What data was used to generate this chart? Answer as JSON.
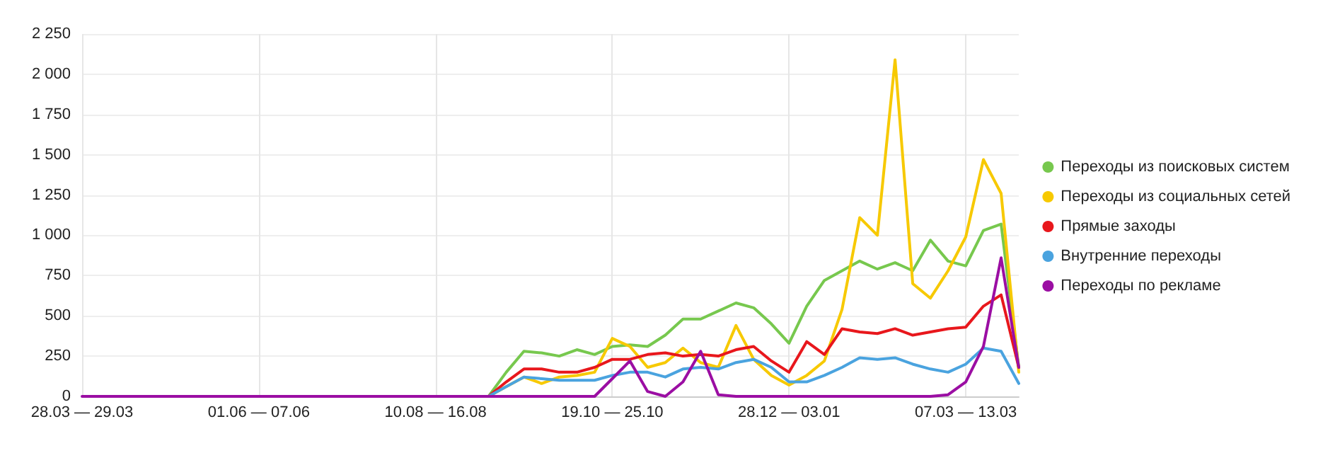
{
  "chart_data": {
    "type": "line",
    "categories": [
      "28.03 — 29.03",
      null,
      null,
      null,
      null,
      null,
      null,
      null,
      null,
      null,
      "01.06 — 07.06",
      null,
      null,
      null,
      null,
      null,
      null,
      null,
      null,
      null,
      "10.08 — 16.08",
      null,
      null,
      null,
      null,
      null,
      null,
      null,
      null,
      null,
      "19.10 — 25.10",
      null,
      null,
      null,
      null,
      null,
      null,
      null,
      null,
      null,
      "28.12 — 03.01",
      null,
      null,
      null,
      null,
      null,
      null,
      null,
      null,
      null,
      "07.03 — 13.03",
      null,
      null,
      null
    ],
    "series": [
      {
        "name": "Переходы из поисковых систем",
        "color": "#77c84e",
        "values": [
          null,
          null,
          null,
          null,
          null,
          null,
          null,
          null,
          null,
          null,
          null,
          null,
          null,
          null,
          null,
          null,
          null,
          null,
          null,
          null,
          null,
          null,
          null,
          0,
          150,
          280,
          270,
          250,
          290,
          260,
          310,
          320,
          310,
          380,
          480,
          480,
          530,
          580,
          550,
          450,
          330,
          560,
          720,
          780,
          840,
          790,
          830,
          780,
          970,
          840,
          810,
          1030,
          1070,
          180
        ]
      },
      {
        "name": "Переходы из социальных сетей",
        "color": "#f7c900",
        "values": [
          null,
          null,
          null,
          null,
          null,
          null,
          null,
          null,
          null,
          null,
          null,
          null,
          null,
          null,
          null,
          null,
          null,
          null,
          null,
          null,
          null,
          null,
          null,
          0,
          60,
          120,
          80,
          120,
          130,
          150,
          360,
          310,
          180,
          210,
          300,
          210,
          180,
          440,
          230,
          130,
          70,
          130,
          220,
          540,
          1110,
          1000,
          2090,
          700,
          610,
          780,
          990,
          1470,
          1260,
          150
        ]
      },
      {
        "name": "Прямые заходы",
        "color": "#e8171c",
        "values": [
          null,
          null,
          null,
          null,
          null,
          null,
          null,
          null,
          null,
          null,
          null,
          null,
          null,
          null,
          null,
          null,
          null,
          null,
          null,
          null,
          null,
          null,
          null,
          0,
          90,
          170,
          170,
          150,
          150,
          180,
          230,
          230,
          260,
          270,
          250,
          260,
          250,
          290,
          310,
          220,
          150,
          340,
          260,
          420,
          400,
          390,
          420,
          380,
          400,
          420,
          430,
          560,
          630,
          180
        ]
      },
      {
        "name": "Внутренние переходы",
        "color": "#4aa3df",
        "values": [
          null,
          null,
          null,
          null,
          null,
          null,
          null,
          null,
          null,
          null,
          null,
          null,
          null,
          null,
          null,
          null,
          null,
          null,
          null,
          null,
          null,
          null,
          null,
          0,
          60,
          120,
          110,
          100,
          100,
          100,
          130,
          150,
          150,
          120,
          170,
          180,
          170,
          210,
          230,
          180,
          90,
          90,
          130,
          180,
          240,
          230,
          240,
          200,
          170,
          150,
          200,
          300,
          280,
          80
        ]
      },
      {
        "name": "Переходы по рекламе",
        "color": "#9b0ea3",
        "values": [
          0,
          0,
          0,
          0,
          0,
          0,
          0,
          0,
          0,
          0,
          0,
          0,
          0,
          0,
          0,
          0,
          0,
          0,
          0,
          0,
          0,
          0,
          0,
          0,
          0,
          0,
          0,
          0,
          0,
          0,
          110,
          220,
          30,
          0,
          90,
          280,
          10,
          0,
          0,
          0,
          0,
          0,
          0,
          0,
          0,
          0,
          0,
          0,
          0,
          10,
          90,
          310,
          860,
          180
        ]
      }
    ],
    "ylim": [
      0,
      2250
    ],
    "yticks": [
      0,
      {
        "value": 250,
        "label": "250"
      },
      {
        "value": 500,
        "label": "500"
      },
      {
        "value": 750,
        "label": "750"
      },
      {
        "value": 1000,
        "label": "1 000"
      },
      {
        "value": 1250,
        "label": "1 250"
      },
      {
        "value": 1500,
        "label": "1 500"
      },
      {
        "value": 1750,
        "label": "1 750"
      },
      {
        "value": 2000,
        "label": "2 000"
      },
      {
        "value": 2250,
        "label": "2 250"
      }
    ],
    "grid": true,
    "legend": "right",
    "marker": "none",
    "line_style": "solid"
  }
}
